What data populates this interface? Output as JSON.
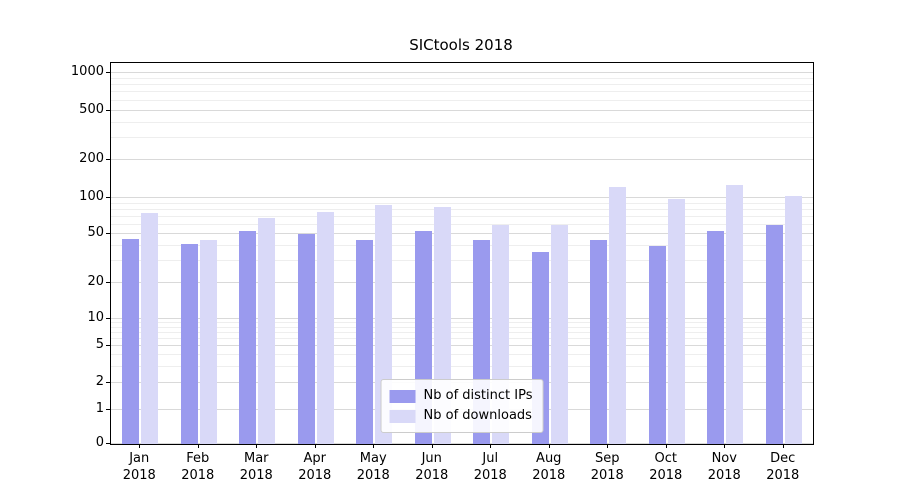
{
  "chart_data": {
    "type": "bar",
    "title": "SICtools 2018",
    "categories": [
      "Jan 2018",
      "Feb 2018",
      "Mar 2018",
      "Apr 2018",
      "May 2018",
      "Jun 2018",
      "Jul 2018",
      "Aug 2018",
      "Sep 2018",
      "Oct 2018",
      "Nov 2018",
      "Dec 2018"
    ],
    "series": [
      {
        "name": "Nb of distinct IPs",
        "color": "#9a9aee",
        "values": [
          46,
          42,
          53,
          50,
          45,
          53,
          45,
          36,
          45,
          40,
          53,
          60
        ]
      },
      {
        "name": "Nb of downloads",
        "color": "#d9d9f8",
        "values": [
          75,
          45,
          68,
          76,
          88,
          85,
          60,
          60,
          122,
          99,
          128,
          104
        ]
      }
    ],
    "yscale": "symlog",
    "yticks": [
      0,
      1,
      2,
      5,
      10,
      20,
      50,
      100,
      200,
      500,
      1000
    ],
    "ylim": [
      0,
      1200
    ],
    "grid": true,
    "legend_position": "lower center"
  }
}
